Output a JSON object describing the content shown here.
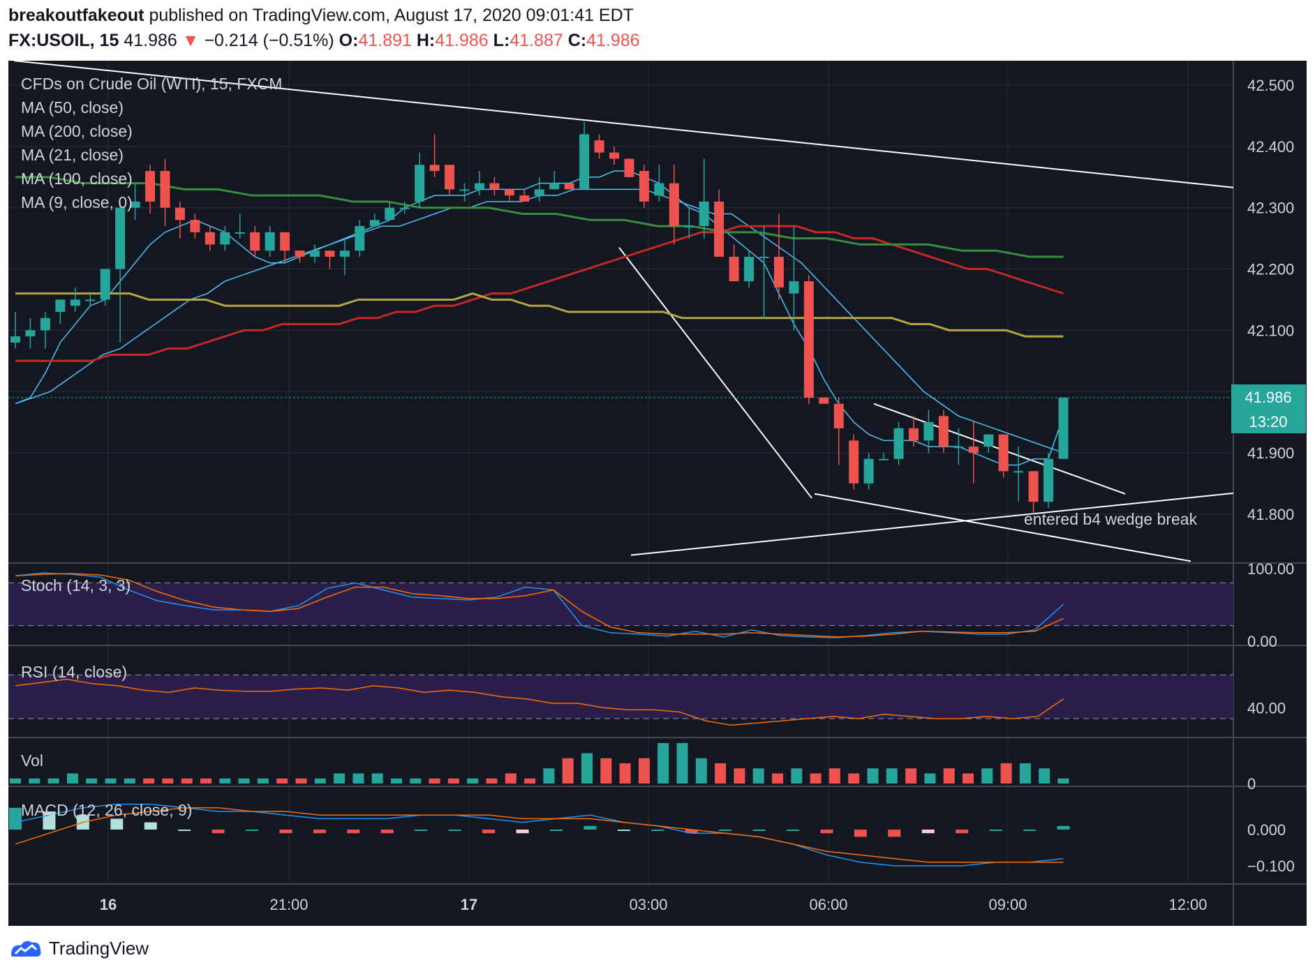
{
  "header": {
    "author": "breakoutfakeout",
    "published_text": "published on TradingView.com, August 17, 2020 09:01:41 EDT",
    "symbol": "FX:USOIL, 15",
    "last": "41.986",
    "change_arrow": "▼",
    "change": "−0.214 (−0.51%)",
    "o_label": "O:",
    "o": "41.891",
    "h_label": "H:",
    "h": "41.986",
    "l_label": "L:",
    "l": "41.887",
    "c_label": "C:",
    "c": "41.986"
  },
  "legend": {
    "title": "CFDs on Crude Oil (WTI), 15, FXCM",
    "ma50": "MA (50, close)",
    "ma200": "MA (200, close)",
    "ma21": "MA (21, close)",
    "ma100": "MA (100, close)",
    "ma9": "MA (9, close, 0)"
  },
  "panes": {
    "stoch_label": "Stoch (14, 3, 3)",
    "rsi_label": "RSI (14, close)",
    "vol_label": "Vol",
    "macd_label": "MACD (12, 26, close, 9)"
  },
  "annotation": "entered b4 wedge break",
  "price_badge": {
    "value": "41.986",
    "countdown": "13:20"
  },
  "footer": {
    "brand": "TradingView"
  },
  "colors": {
    "background": "#131722",
    "up": "#26a69a",
    "down": "#ef5350",
    "ma_fast": "#4fc3f7",
    "ma_red": "#c62828",
    "ma_green": "#388e3c",
    "ma_yellow": "#b5a642",
    "stoch_k": "#2196f3",
    "stoch_d": "#ff6d00"
  },
  "chart_data": {
    "type": "candlestick",
    "title": "CFDs on Crude Oil (WTI), 15, FXCM",
    "price_axis": {
      "ticks": [
        "42.500",
        "42.400",
        "42.300",
        "42.200",
        "42.100",
        "41.900",
        "41.800"
      ],
      "range": [
        41.72,
        42.54
      ]
    },
    "time_axis": {
      "ticks": [
        "16",
        "21:00",
        "17",
        "03:00",
        "06:00",
        "09:00",
        "12:00"
      ]
    },
    "candles": [
      [
        42.08,
        42.09,
        42.13,
        42.07
      ],
      [
        42.09,
        42.1,
        42.12,
        42.07
      ],
      [
        42.1,
        42.12,
        42.13,
        42.07
      ],
      [
        42.13,
        42.15,
        42.15,
        42.11
      ],
      [
        42.14,
        42.15,
        42.17,
        42.13
      ],
      [
        42.15,
        42.15,
        42.16,
        42.14
      ],
      [
        42.15,
        42.2,
        42.2,
        42.14
      ],
      [
        42.2,
        42.3,
        42.31,
        42.08
      ],
      [
        42.3,
        42.31,
        42.34,
        42.28
      ],
      [
        42.36,
        42.31,
        42.37,
        42.29
      ],
      [
        42.36,
        42.3,
        42.38,
        42.27
      ],
      [
        42.3,
        42.28,
        42.31,
        42.25
      ],
      [
        42.28,
        42.26,
        42.29,
        42.25
      ],
      [
        42.26,
        42.24,
        42.27,
        42.23
      ],
      [
        42.24,
        42.26,
        42.27,
        42.23
      ],
      [
        42.26,
        42.26,
        42.29,
        42.25
      ],
      [
        42.26,
        42.23,
        42.27,
        42.22
      ],
      [
        42.23,
        42.26,
        42.27,
        42.22
      ],
      [
        42.26,
        42.23,
        42.26,
        42.21
      ],
      [
        42.23,
        42.22,
        42.23,
        42.21
      ],
      [
        42.22,
        42.23,
        42.24,
        42.21
      ],
      [
        42.23,
        42.22,
        42.23,
        42.2
      ],
      [
        42.22,
        42.23,
        42.25,
        42.19
      ],
      [
        42.23,
        42.27,
        42.28,
        42.22
      ],
      [
        42.27,
        42.28,
        42.29,
        42.27
      ],
      [
        42.28,
        42.3,
        42.31,
        42.28
      ],
      [
        42.3,
        42.3,
        42.31,
        42.29
      ],
      [
        42.31,
        42.37,
        42.39,
        42.3
      ],
      [
        42.37,
        42.36,
        42.42,
        42.35
      ],
      [
        42.37,
        42.33,
        42.37,
        42.32
      ],
      [
        42.33,
        42.33,
        42.34,
        42.31
      ],
      [
        42.33,
        42.34,
        42.36,
        42.32
      ],
      [
        42.34,
        42.33,
        42.35,
        42.32
      ],
      [
        42.33,
        42.32,
        42.33,
        42.31
      ],
      [
        42.32,
        42.31,
        42.33,
        42.31
      ],
      [
        42.32,
        42.33,
        42.35,
        42.31
      ],
      [
        42.33,
        42.34,
        42.36,
        42.33
      ],
      [
        42.34,
        42.33,
        42.34,
        42.33
      ],
      [
        42.33,
        42.42,
        42.44,
        42.33
      ],
      [
        42.41,
        42.39,
        42.42,
        42.38
      ],
      [
        42.39,
        42.38,
        42.4,
        42.37
      ],
      [
        42.38,
        42.35,
        42.38,
        42.35
      ],
      [
        42.36,
        42.31,
        42.37,
        42.3
      ],
      [
        42.32,
        42.34,
        42.37,
        42.31
      ],
      [
        42.34,
        42.27,
        42.37,
        42.24
      ],
      [
        42.27,
        42.27,
        42.3,
        42.25
      ],
      [
        42.27,
        42.31,
        42.38,
        42.25
      ],
      [
        42.31,
        42.22,
        42.33,
        42.22
      ],
      [
        42.22,
        42.18,
        42.24,
        42.18
      ],
      [
        42.18,
        42.22,
        42.23,
        42.17
      ],
      [
        42.22,
        42.22,
        42.27,
        42.12
      ],
      [
        42.22,
        42.17,
        42.29,
        42.15
      ],
      [
        42.16,
        42.18,
        42.27,
        42.1
      ],
      [
        42.18,
        41.99,
        42.19,
        41.98
      ],
      [
        41.99,
        41.98,
        41.99,
        41.98
      ],
      [
        41.98,
        41.94,
        41.99,
        41.88
      ],
      [
        41.92,
        41.85,
        41.93,
        41.84
      ],
      [
        41.85,
        41.89,
        41.9,
        41.84
      ],
      [
        41.89,
        41.89,
        41.9,
        41.89
      ],
      [
        41.89,
        41.94,
        41.95,
        41.88
      ],
      [
        41.94,
        41.92,
        41.96,
        41.91
      ],
      [
        41.92,
        41.95,
        41.97,
        41.9
      ],
      [
        41.96,
        41.91,
        41.97,
        41.9
      ],
      [
        41.91,
        41.91,
        41.94,
        41.88
      ],
      [
        41.91,
        41.9,
        41.95,
        41.85
      ],
      [
        41.91,
        41.93,
        41.93,
        41.9
      ],
      [
        41.93,
        41.87,
        41.93,
        41.86
      ],
      [
        41.87,
        41.87,
        41.91,
        41.82
      ],
      [
        41.87,
        41.82,
        41.87,
        41.8
      ],
      [
        41.82,
        41.89,
        41.9,
        41.81
      ],
      [
        41.89,
        41.99,
        41.99,
        41.89
      ]
    ],
    "series": [
      {
        "name": "MA (9, close, 0)",
        "values": [
          41.98,
          41.99,
          42.03,
          42.08,
          42.11,
          42.14,
          42.15,
          42.18,
          42.21,
          42.24,
          42.26,
          42.27,
          42.28,
          42.27,
          42.26,
          42.24,
          42.22,
          42.21,
          42.21,
          42.22,
          42.23,
          42.24,
          42.25,
          42.26,
          42.27,
          42.28,
          42.3,
          42.31,
          42.32,
          42.32,
          42.32,
          42.33,
          42.33,
          42.33,
          42.33,
          42.34,
          42.34,
          42.34,
          42.35,
          42.35,
          42.36,
          42.36,
          42.35,
          42.34,
          42.32,
          42.3,
          42.29,
          42.27,
          42.25,
          42.23,
          42.21,
          42.16,
          42.11,
          42.07,
          42.02,
          41.98,
          41.95,
          41.93,
          41.92,
          41.92,
          41.92,
          41.91,
          41.91,
          41.91,
          41.9,
          41.89,
          41.88,
          41.88,
          41.89,
          41.89,
          41.96
        ]
      },
      {
        "name": "MA (21, close)",
        "values": [
          41.98,
          41.99,
          42.0,
          42.02,
          42.04,
          42.06,
          42.07,
          42.09,
          42.11,
          42.13,
          42.15,
          42.16,
          42.18,
          42.19,
          42.2,
          42.21,
          42.22,
          42.23,
          42.24,
          42.25,
          42.26,
          42.27,
          42.27,
          42.28,
          42.29,
          42.3,
          42.3,
          42.31,
          42.31,
          42.31,
          42.32,
          42.32,
          42.33,
          42.33,
          42.33,
          42.33,
          42.33,
          42.32,
          42.31,
          42.3,
          42.29,
          42.29,
          42.27,
          42.25,
          42.23,
          42.21,
          42.18,
          42.15,
          42.12,
          42.09,
          42.06,
          42.03,
          42.0,
          41.98,
          41.96,
          41.95,
          41.94,
          41.93,
          41.92,
          41.91,
          41.9
        ]
      },
      {
        "name": "MA (50, close)",
        "values": [
          42.05,
          42.05,
          42.05,
          42.05,
          42.05,
          42.06,
          42.06,
          42.06,
          42.07,
          42.07,
          42.08,
          42.09,
          42.1,
          42.1,
          42.11,
          42.11,
          42.11,
          42.11,
          42.12,
          42.12,
          42.13,
          42.13,
          42.14,
          42.14,
          42.15,
          42.16,
          42.16,
          42.17,
          42.18,
          42.19,
          42.2,
          42.21,
          42.22,
          42.23,
          42.24,
          42.25,
          42.26,
          42.26,
          42.27,
          42.27,
          42.27,
          42.27,
          42.26,
          42.26,
          42.25,
          42.25,
          42.24,
          42.23,
          42.22,
          42.21,
          42.2,
          42.2,
          42.19,
          42.18,
          42.17,
          42.16
        ]
      },
      {
        "name": "MA (100, close)",
        "values": [
          42.16,
          42.16,
          42.16,
          42.16,
          42.16,
          42.16,
          42.16,
          42.15,
          42.15,
          42.15,
          42.15,
          42.14,
          42.14,
          42.14,
          42.14,
          42.14,
          42.14,
          42.14,
          42.15,
          42.15,
          42.15,
          42.15,
          42.15,
          42.15,
          42.16,
          42.15,
          42.15,
          42.14,
          42.14,
          42.13,
          42.13,
          42.13,
          42.13,
          42.13,
          42.13,
          42.12,
          42.12,
          42.12,
          42.12,
          42.12,
          42.12,
          42.12,
          42.12,
          42.12,
          42.12,
          42.12,
          42.12,
          42.11,
          42.11,
          42.1,
          42.1,
          42.1,
          42.1,
          42.09,
          42.09,
          42.09
        ]
      },
      {
        "name": "MA (200, close)",
        "values": [
          42.35,
          42.35,
          42.34,
          42.34,
          42.34,
          42.33,
          42.33,
          42.32,
          42.32,
          42.32,
          42.31,
          42.31,
          42.3,
          42.3,
          42.3,
          42.29,
          42.29,
          42.28,
          42.28,
          42.27,
          42.27,
          42.26,
          42.26,
          42.25,
          42.25,
          42.24,
          42.24,
          42.24,
          42.23,
          42.23,
          42.22,
          42.22
        ]
      }
    ],
    "stoch": {
      "axis": [
        "100.00",
        "0.00"
      ],
      "k": [
        90,
        94,
        92,
        88,
        70,
        55,
        48,
        42,
        42,
        40,
        48,
        72,
        80,
        70,
        60,
        58,
        56,
        60,
        74,
        70,
        20,
        10,
        8,
        5,
        12,
        4,
        14,
        6,
        4,
        3,
        6,
        10,
        12,
        10,
        8,
        8,
        14,
        50
      ],
      "d": [
        90,
        92,
        93,
        91,
        84,
        68,
        55,
        46,
        42,
        40,
        44,
        60,
        74,
        74,
        65,
        62,
        58,
        58,
        62,
        70,
        40,
        18,
        10,
        8,
        8,
        8,
        10,
        8,
        6,
        4,
        5,
        8,
        12,
        11,
        10,
        10,
        12,
        30
      ]
    },
    "rsi": {
      "axis": [
        "40.00"
      ],
      "values": [
        60,
        63,
        66,
        62,
        60,
        56,
        54,
        58,
        56,
        55,
        55,
        57,
        58,
        56,
        60,
        58,
        54,
        56,
        54,
        50,
        48,
        44,
        44,
        40,
        38,
        38,
        36,
        28,
        24,
        26,
        28,
        30,
        32,
        30,
        34,
        32,
        30,
        30,
        32,
        30,
        32,
        48
      ]
    },
    "volume": {
      "axis": [
        "0"
      ],
      "values": [
        1,
        1,
        1,
        2,
        1,
        1,
        1,
        1,
        1,
        1,
        1,
        1,
        1,
        1,
        1,
        1,
        1,
        2,
        2,
        2,
        1,
        1,
        1,
        1,
        1,
        1,
        2,
        1,
        3,
        5,
        6,
        5,
        4,
        5,
        8,
        8,
        5,
        4,
        3,
        3,
        2,
        3,
        2,
        3,
        2,
        3,
        3,
        3,
        2,
        3,
        2,
        3,
        4,
        4,
        3,
        1
      ]
    },
    "macd": {
      "axis": [
        "0.000",
        "−0.100"
      ],
      "macd": [
        0.02,
        0.04,
        0.06,
        0.07,
        0.07,
        0.06,
        0.05,
        0.05,
        0.04,
        0.03,
        0.03,
        0.03,
        0.04,
        0.04,
        0.03,
        0.02,
        0.03,
        0.04,
        0.02,
        0.01,
        -0.01,
        -0.01,
        -0.02,
        -0.04,
        -0.07,
        -0.09,
        -0.1,
        -0.1,
        -0.1,
        -0.09,
        -0.09,
        -0.08
      ],
      "signal": [
        -0.04,
        -0.01,
        0.02,
        0.04,
        0.05,
        0.06,
        0.06,
        0.05,
        0.05,
        0.04,
        0.04,
        0.04,
        0.04,
        0.04,
        0.04,
        0.03,
        0.03,
        0.03,
        0.02,
        0.01,
        0.0,
        -0.01,
        -0.02,
        -0.04,
        -0.06,
        -0.07,
        -0.08,
        -0.09,
        -0.09,
        -0.09,
        -0.09,
        -0.09
      ]
    }
  }
}
